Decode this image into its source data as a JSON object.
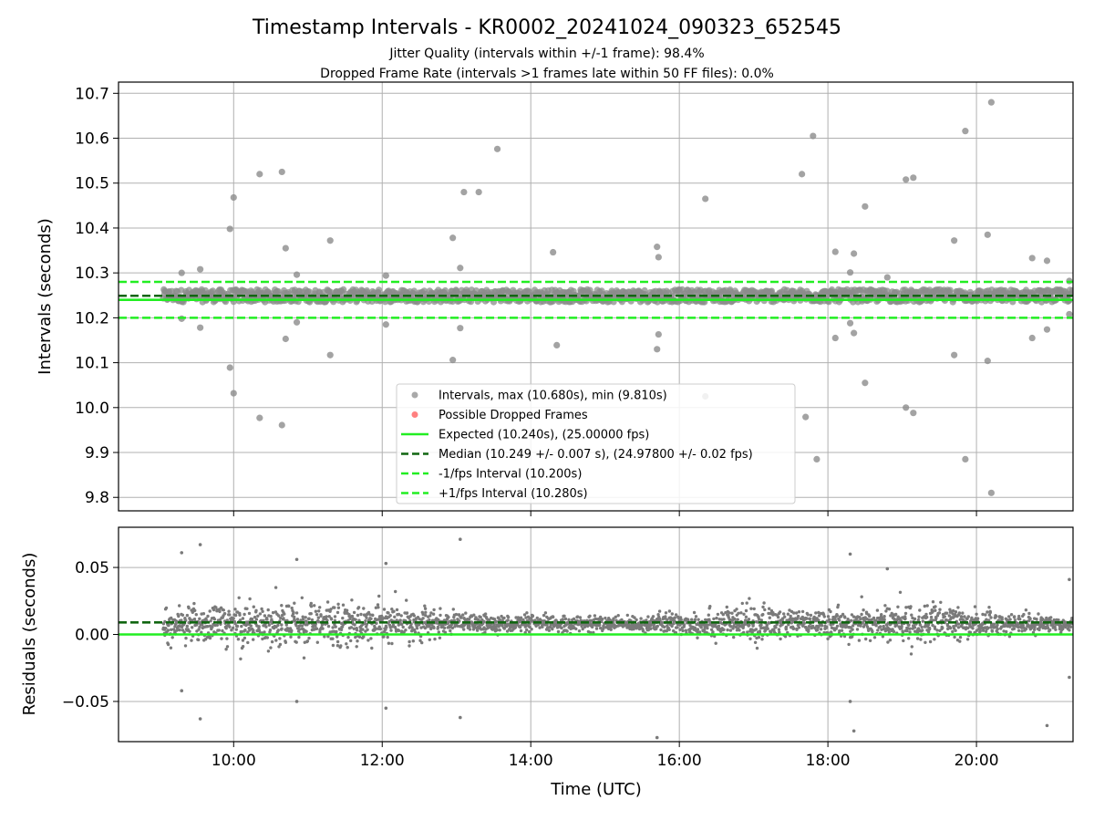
{
  "chart_data": [
    {
      "type": "scatter",
      "title": "Timestamp Intervals - KR0002_20241024_090323_652545",
      "subtitle_lines": [
        "Jitter Quality (intervals within +/-1 frame): 98.4%",
        "Dropped Frame Rate (intervals >1 frames late within 50 FF files): 0.0%"
      ],
      "ylabel": "Intervals (seconds)",
      "xlim_hours": [
        8.45,
        21.3
      ],
      "ylim": [
        9.77,
        10.725
      ],
      "grid": true,
      "legend_position": "lower-center",
      "x_ticks": [
        {
          "value": 10,
          "label": "10:00"
        },
        {
          "value": 12,
          "label": "12:00"
        },
        {
          "value": 14,
          "label": "14:00"
        },
        {
          "value": 16,
          "label": "16:00"
        },
        {
          "value": 18,
          "label": "18:00"
        },
        {
          "value": 20,
          "label": "20:00"
        }
      ],
      "y_ticks": [
        {
          "value": 9.8,
          "label": "9.8"
        },
        {
          "value": 9.9,
          "label": "9.9"
        },
        {
          "value": 10.0,
          "label": "10.0"
        },
        {
          "value": 10.1,
          "label": "10.1"
        },
        {
          "value": 10.2,
          "label": "10.2"
        },
        {
          "value": 10.3,
          "label": "10.3"
        },
        {
          "value": 10.4,
          "label": "10.4"
        },
        {
          "value": 10.5,
          "label": "10.5"
        },
        {
          "value": 10.6,
          "label": "10.6"
        },
        {
          "value": 10.7,
          "label": "10.7"
        }
      ],
      "series": [
        {
          "name": "Intervals, max (10.680s), min (9.810s)",
          "kind": "scatter",
          "color": "#8c8c8c",
          "band": {
            "x_start": 9.05,
            "x_end": 21.3,
            "center": 10.249,
            "half_width": 0.014
          },
          "outliers": [
            [
              9.3,
              10.3
            ],
            [
              9.55,
              10.308
            ],
            [
              9.95,
              10.398
            ],
            [
              10.0,
              10.468
            ],
            [
              10.35,
              10.52
            ],
            [
              10.65,
              10.525
            ],
            [
              10.7,
              10.355
            ],
            [
              10.85,
              10.296
            ],
            [
              11.3,
              10.372
            ],
            [
              12.05,
              10.294
            ],
            [
              12.95,
              10.378
            ],
            [
              13.05,
              10.311
            ],
            [
              13.1,
              10.48
            ],
            [
              13.3,
              10.48
            ],
            [
              13.55,
              10.576
            ],
            [
              14.3,
              10.346
            ],
            [
              15.7,
              10.358
            ],
            [
              15.72,
              10.335
            ],
            [
              16.35,
              10.465
            ],
            [
              17.65,
              10.52
            ],
            [
              17.8,
              10.605
            ],
            [
              18.1,
              10.347
            ],
            [
              18.3,
              10.301
            ],
            [
              18.35,
              10.343
            ],
            [
              18.5,
              10.448
            ],
            [
              18.8,
              10.29
            ],
            [
              19.05,
              10.508
            ],
            [
              19.15,
              10.512
            ],
            [
              19.7,
              10.372
            ],
            [
              19.85,
              10.616
            ],
            [
              20.15,
              10.385
            ],
            [
              20.2,
              10.68
            ],
            [
              20.75,
              10.333
            ],
            [
              20.95,
              10.327
            ],
            [
              21.25,
              10.282
            ],
            [
              9.3,
              10.198
            ],
            [
              9.55,
              10.178
            ],
            [
              9.95,
              10.089
            ],
            [
              10.0,
              10.032
            ],
            [
              10.35,
              9.977
            ],
            [
              10.65,
              9.961
            ],
            [
              10.7,
              10.153
            ],
            [
              10.85,
              10.19
            ],
            [
              11.3,
              10.117
            ],
            [
              12.05,
              10.185
            ],
            [
              12.95,
              10.106
            ],
            [
              13.05,
              10.177
            ],
            [
              14.35,
              10.139
            ],
            [
              15.7,
              10.13
            ],
            [
              15.72,
              10.163
            ],
            [
              16.35,
              10.025
            ],
            [
              17.7,
              9.979
            ],
            [
              17.85,
              9.885
            ],
            [
              18.1,
              10.155
            ],
            [
              18.3,
              10.188
            ],
            [
              18.35,
              10.166
            ],
            [
              18.5,
              10.055
            ],
            [
              19.05,
              10.0
            ],
            [
              19.15,
              9.988
            ],
            [
              19.7,
              10.117
            ],
            [
              19.85,
              9.885
            ],
            [
              20.15,
              10.104
            ],
            [
              20.2,
              9.81
            ],
            [
              20.75,
              10.155
            ],
            [
              20.95,
              10.174
            ],
            [
              21.25,
              10.208
            ]
          ]
        },
        {
          "name": "Possible Dropped Frames",
          "kind": "scatter",
          "color": "#ff5555",
          "points": []
        },
        {
          "name": "Expected (10.240s), (25.00000 fps)",
          "kind": "hline",
          "value": 10.24,
          "color": "#22ee22",
          "dash": "solid"
        },
        {
          "name": "Median (10.249 +/- 0.007 s), (24.97800 +/- 0.02 fps)",
          "kind": "hline",
          "value": 10.249,
          "color": "#116611",
          "dash": "dashed"
        },
        {
          "name": "-1/fps Interval (10.200s)",
          "kind": "hline",
          "value": 10.2,
          "color": "#22ee22",
          "dash": "dashed"
        },
        {
          "name": "+1/fps Interval (10.280s)",
          "kind": "hline",
          "value": 10.28,
          "color": "#22ee22",
          "dash": "dashed"
        }
      ]
    },
    {
      "type": "scatter",
      "xlabel": "Time (UTC)",
      "ylabel": "Residuals (seconds)",
      "xlim_hours": [
        8.45,
        21.3
      ],
      "ylim": [
        -0.08,
        0.08
      ],
      "grid": true,
      "x_ticks": [
        {
          "value": 10,
          "label": "10:00"
        },
        {
          "value": 12,
          "label": "12:00"
        },
        {
          "value": 14,
          "label": "14:00"
        },
        {
          "value": 16,
          "label": "16:00"
        },
        {
          "value": 18,
          "label": "18:00"
        },
        {
          "value": 20,
          "label": "20:00"
        }
      ],
      "y_ticks": [
        {
          "value": -0.05,
          "label": "−0.05"
        },
        {
          "value": 0.0,
          "label": "0.00"
        },
        {
          "value": 0.05,
          "label": "0.05"
        }
      ],
      "series": [
        {
          "kind": "scatter",
          "color": "#7a7a7a",
          "residual_spread": [
            [
              9.05,
              0.008
            ],
            [
              10.0,
              0.013
            ],
            [
              11.5,
              0.013
            ],
            [
              12.4,
              0.011
            ],
            [
              12.8,
              0.006
            ],
            [
              13.6,
              0.005
            ],
            [
              15.4,
              0.004
            ],
            [
              16.0,
              0.007
            ],
            [
              17.2,
              0.011
            ],
            [
              17.8,
              0.006
            ],
            [
              18.5,
              0.01
            ],
            [
              19.5,
              0.011
            ],
            [
              20.1,
              0.008
            ],
            [
              20.7,
              0.005
            ],
            [
              21.3,
              0.004
            ]
          ],
          "outliers": [
            [
              9.3,
              0.061
            ],
            [
              9.55,
              0.067
            ],
            [
              10.85,
              0.056
            ],
            [
              12.05,
              0.053
            ],
            [
              13.05,
              0.071
            ],
            [
              18.3,
              0.06
            ],
            [
              18.8,
              0.049
            ],
            [
              21.25,
              0.041
            ],
            [
              9.3,
              -0.042
            ],
            [
              9.55,
              -0.063
            ],
            [
              10.85,
              -0.05
            ],
            [
              12.05,
              -0.055
            ],
            [
              13.05,
              -0.062
            ],
            [
              15.7,
              -0.077
            ],
            [
              18.3,
              -0.05
            ],
            [
              18.35,
              -0.072
            ],
            [
              20.95,
              -0.068
            ],
            [
              21.25,
              -0.032
            ]
          ]
        },
        {
          "kind": "hline",
          "value": 0.0,
          "color": "#22ee22",
          "dash": "solid"
        },
        {
          "kind": "hline",
          "value": 0.009,
          "color": "#116611",
          "dash": "dashed"
        }
      ]
    }
  ]
}
